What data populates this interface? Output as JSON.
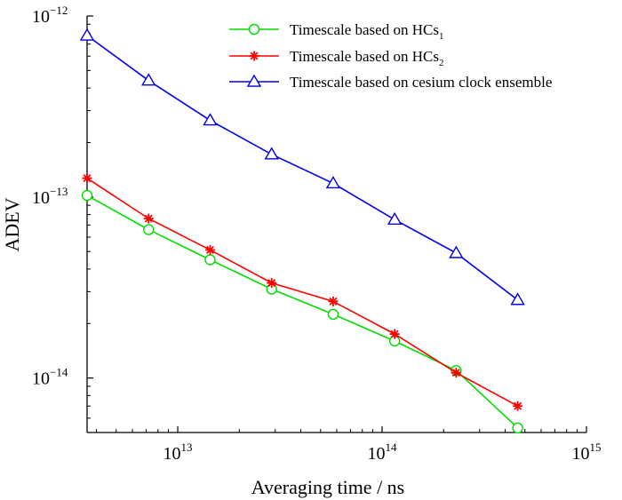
{
  "chart_data": {
    "type": "line",
    "xscale": "log",
    "yscale": "log",
    "xlabel": "Averaging time / ns",
    "ylabel": "ADEV",
    "xlim": [
      3600000000000.0,
      1000000000000000.0
    ],
    "ylim": [
      5e-15,
      1e-12
    ],
    "x_ticks": [
      {
        "value": 10000000000000.0,
        "base": "10",
        "exp": "13"
      },
      {
        "value": 100000000000000.0,
        "base": "10",
        "exp": "14"
      },
      {
        "value": 1000000000000000.0,
        "base": "10",
        "exp": "15"
      }
    ],
    "y_ticks": [
      {
        "value": 1e-12,
        "base": "10",
        "exp": "−12"
      },
      {
        "value": 1e-13,
        "base": "10",
        "exp": "−13"
      },
      {
        "value": 1e-14,
        "base": "10",
        "exp": "−14"
      }
    ],
    "x": [
      3600000000000.0,
      7200000000000.0,
      14400000000000.0,
      28800000000000.0,
      57600000000000.0,
      115200000000000.0,
      230400000000000.0,
      460800000000000.0
    ],
    "series": [
      {
        "name": "Timescale based on HCs",
        "name_sub": "1",
        "color": "#00dd00",
        "marker": "circle",
        "values": [
          1.02e-13,
          6.6e-14,
          4.5e-14,
          3.1e-14,
          2.25e-14,
          1.6e-14,
          1.1e-14,
          5.3e-15
        ]
      },
      {
        "name": "Timescale based on HCs",
        "name_sub": "2",
        "color": "#ff0000",
        "marker": "star",
        "values": [
          1.27e-13,
          7.6e-14,
          5.1e-14,
          3.35e-14,
          2.65e-14,
          1.75e-14,
          1.07e-14,
          7e-15
        ]
      },
      {
        "name": "Timescale based on cesium clock ensemble",
        "name_sub": "",
        "color": "#0000ee",
        "marker": "triangle",
        "values": [
          7.8e-13,
          4.4e-13,
          2.65e-13,
          1.72e-13,
          1.19e-13,
          7.5e-14,
          4.9e-14,
          2.7e-14
        ]
      }
    ],
    "legend_position": "top-right"
  }
}
